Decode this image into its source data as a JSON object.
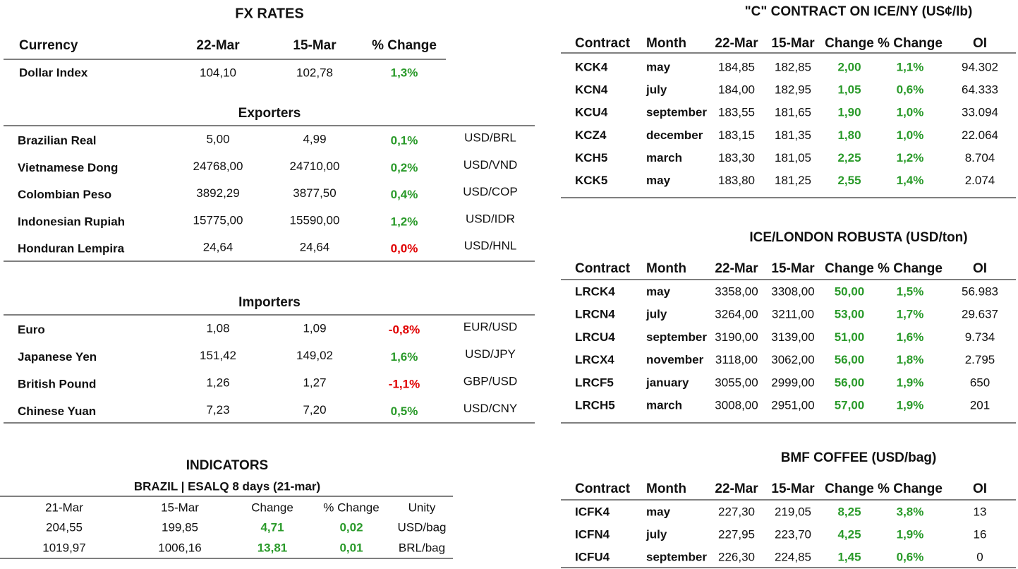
{
  "fx": {
    "title": "FX RATES",
    "header": [
      "Currency",
      "22-Mar",
      "15-Mar",
      "% Change"
    ],
    "row": [
      "Dollar Index",
      "104,10",
      "102,78",
      "1,3%"
    ],
    "change_color": "#2a9a2a"
  },
  "exporters": {
    "title": "Exporters",
    "rows": [
      [
        "Brazilian Real",
        "5,00",
        "4,99",
        "0,1%",
        "USD/BRL"
      ],
      [
        "Vietnamese Dong",
        "24768,00",
        "24710,00",
        "0,2%",
        "USD/VND"
      ],
      [
        "Colombian Peso",
        "3892,29",
        "3877,50",
        "0,4%",
        "USD/COP"
      ],
      [
        "Indonesian Rupiah",
        "15775,00",
        "15590,00",
        "1,2%",
        "USD/IDR"
      ],
      [
        "Honduran Lempira",
        "24,64",
        "24,64",
        "0,0%",
        "USD/HNL"
      ]
    ],
    "change_colors": [
      "#2a9a2a",
      "#2a9a2a",
      "#2a9a2a",
      "#2a9a2a",
      "#e00000"
    ]
  },
  "importers": {
    "title": "Importers",
    "rows": [
      [
        "Euro",
        "1,08",
        "1,09",
        "-0,8%",
        "EUR/USD"
      ],
      [
        "Japanese Yen",
        "151,42",
        "149,02",
        "1,6%",
        "USD/JPY"
      ],
      [
        "British Pound",
        "1,26",
        "1,27",
        "-1,1%",
        "GBP/USD"
      ],
      [
        "Chinese Yuan",
        "7,23",
        "7,20",
        "0,5%",
        "USD/CNY"
      ]
    ],
    "change_colors": [
      "#e00000",
      "#2a9a2a",
      "#e00000",
      "#2a9a2a"
    ]
  },
  "indicators": {
    "title": "INDICATORS",
    "subtitle": "BRAZIL | ESALQ 8 days (21-mar)",
    "header": [
      "21-Mar",
      "15-Mar",
      "Change",
      "% Change",
      "Unity"
    ],
    "rows": [
      [
        "204,55",
        "199,85",
        "4,71",
        "0,02",
        "USD/bag"
      ],
      [
        "1019,97",
        "1006,16",
        "13,81",
        "0,01",
        "BRL/bag"
      ]
    ],
    "change_color": "#2a9a2a"
  },
  "contracts": [
    {
      "title": "\"C\" CONTRACT ON ICE/NY (US¢/lb)",
      "header": [
        "Contract",
        "Month",
        "22-Mar",
        "15-Mar",
        "Change",
        "% Change",
        "OI"
      ],
      "rows": [
        [
          "KCK4",
          "may",
          "184,85",
          "182,85",
          "2,00",
          "1,1%",
          "94.302"
        ],
        [
          "KCN4",
          "july",
          "184,00",
          "182,95",
          "1,05",
          "0,6%",
          "64.333"
        ],
        [
          "KCU4",
          "september",
          "183,55",
          "181,65",
          "1,90",
          "1,0%",
          "33.094"
        ],
        [
          "KCZ4",
          "december",
          "183,15",
          "181,35",
          "1,80",
          "1,0%",
          "22.064"
        ],
        [
          "KCH5",
          "march",
          "183,30",
          "181,05",
          "2,25",
          "1,2%",
          "8.704"
        ],
        [
          "KCK5",
          "may",
          "183,80",
          "181,25",
          "2,55",
          "1,4%",
          "2.074"
        ]
      ],
      "change_color": "#2a9a2a"
    },
    {
      "title": "ICE/LONDON ROBUSTA (USD/ton)",
      "header": [
        "Contract",
        "Month",
        "22-Mar",
        "15-Mar",
        "Change",
        "% Change",
        "OI"
      ],
      "rows": [
        [
          "LRCK4",
          "may",
          "3358,00",
          "3308,00",
          "50,00",
          "1,5%",
          "56.983"
        ],
        [
          "LRCN4",
          "july",
          "3264,00",
          "3211,00",
          "53,00",
          "1,7%",
          "29.637"
        ],
        [
          "LRCU4",
          "september",
          "3190,00",
          "3139,00",
          "51,00",
          "1,6%",
          "9.734"
        ],
        [
          "LRCX4",
          "november",
          "3118,00",
          "3062,00",
          "56,00",
          "1,8%",
          "2.795"
        ],
        [
          "LRCF5",
          "january",
          "3055,00",
          "2999,00",
          "56,00",
          "1,9%",
          "650"
        ],
        [
          "LRCH5",
          "march",
          "3008,00",
          "2951,00",
          "57,00",
          "1,9%",
          "201"
        ]
      ],
      "change_color": "#2a9a2a"
    },
    {
      "title": "BMF COFFEE (USD/bag)",
      "header": [
        "Contract",
        "Month",
        "22-Mar",
        "15-Mar",
        "Change",
        "% Change",
        "OI"
      ],
      "rows": [
        [
          "ICFK4",
          "may",
          "227,30",
          "219,05",
          "8,25",
          "3,8%",
          "13"
        ],
        [
          "ICFN4",
          "july",
          "227,95",
          "223,70",
          "4,25",
          "1,9%",
          "16"
        ],
        [
          "ICFU4",
          "september",
          "226,30",
          "224,85",
          "1,45",
          "0,6%",
          "0"
        ]
      ],
      "change_color": "#2a9a2a"
    }
  ]
}
